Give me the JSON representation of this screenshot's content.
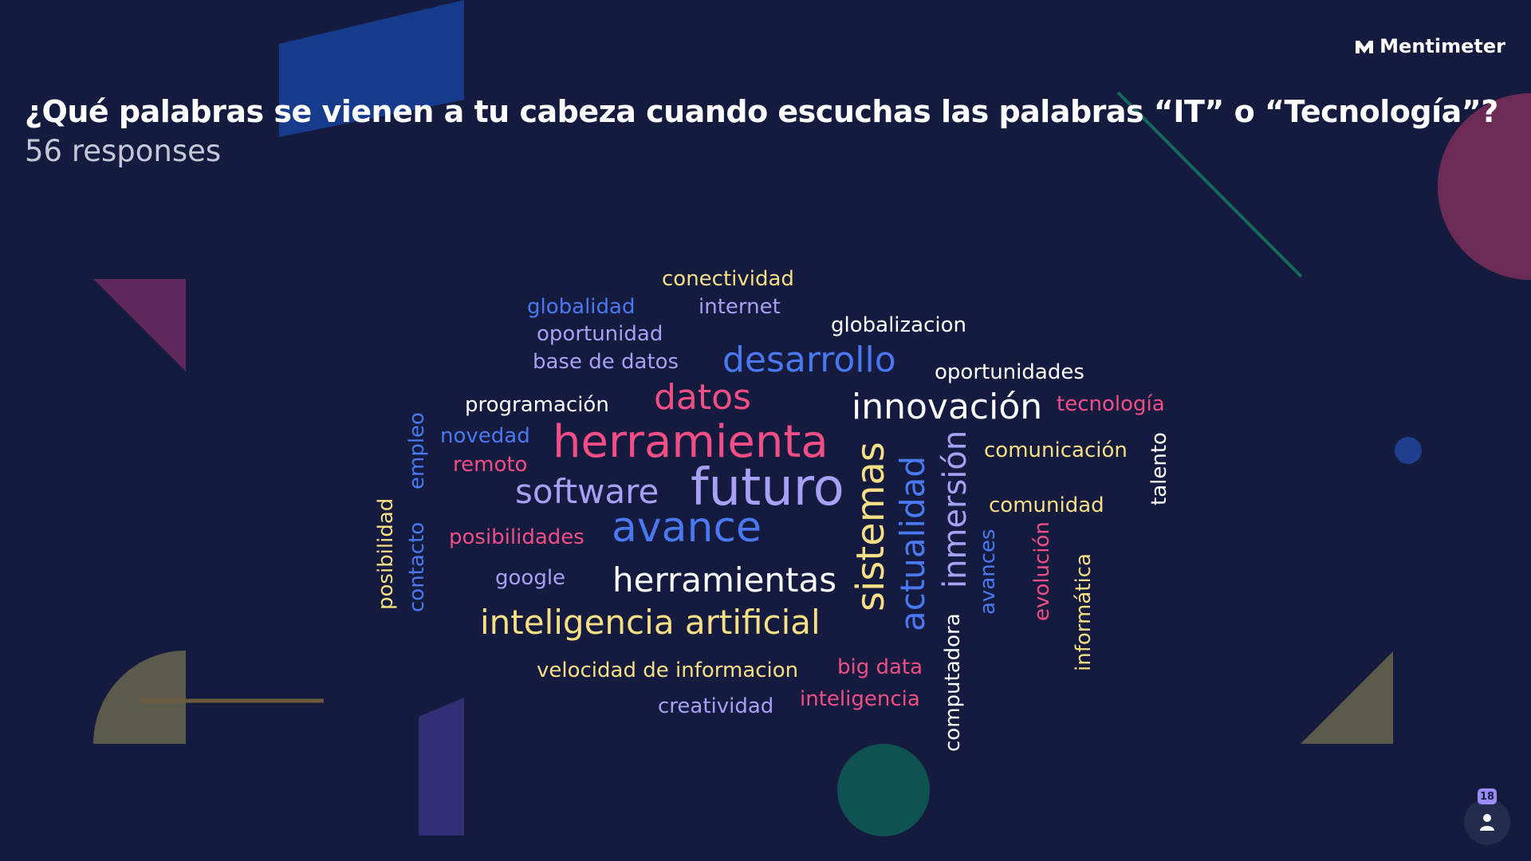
{
  "brand": {
    "name": "Mentimeter",
    "icon": "mentimeter-logo-icon"
  },
  "question": "¿Qué palabras se vienen a tu cabeza cuando escuchas las palabras “IT” o “Tecnología”?",
  "responses_label": "56 responses",
  "participants": {
    "count": "18",
    "icon": "person-icon"
  },
  "palette": {
    "background": "#141b3f",
    "yellow": "#f6df84",
    "blue": "#4a78f0",
    "lavender": "#a7a0f5",
    "pink": "#f04e84",
    "white": "#ffffff"
  },
  "word_cloud": [
    {
      "text": "conectividad",
      "color": "yellow",
      "vertical": false
    },
    {
      "text": "globalidad",
      "color": "blue",
      "vertical": false
    },
    {
      "text": "internet",
      "color": "lavender",
      "vertical": false
    },
    {
      "text": "globalizacion",
      "color": "white",
      "vertical": false
    },
    {
      "text": "oportunidad",
      "color": "lavender",
      "vertical": false
    },
    {
      "text": "base de datos",
      "color": "lavender",
      "vertical": false
    },
    {
      "text": "desarrollo",
      "color": "blue",
      "vertical": false
    },
    {
      "text": "oportunidades",
      "color": "white",
      "vertical": false
    },
    {
      "text": "programación",
      "color": "white",
      "vertical": false
    },
    {
      "text": "datos",
      "color": "pink",
      "vertical": false
    },
    {
      "text": "innovación",
      "color": "white",
      "vertical": false
    },
    {
      "text": "tecnología",
      "color": "pink",
      "vertical": false
    },
    {
      "text": "novedad",
      "color": "blue",
      "vertical": false
    },
    {
      "text": "herramienta",
      "color": "pink",
      "vertical": false
    },
    {
      "text": "remoto",
      "color": "pink",
      "vertical": false
    },
    {
      "text": "comunicación",
      "color": "yellow",
      "vertical": false
    },
    {
      "text": "software",
      "color": "lavender",
      "vertical": false
    },
    {
      "text": "futuro",
      "color": "lavender",
      "vertical": false
    },
    {
      "text": "comunidad",
      "color": "yellow",
      "vertical": false
    },
    {
      "text": "posibilidades",
      "color": "pink",
      "vertical": false
    },
    {
      "text": "avance",
      "color": "blue",
      "vertical": false
    },
    {
      "text": "google",
      "color": "lavender",
      "vertical": false
    },
    {
      "text": "herramientas",
      "color": "white",
      "vertical": false
    },
    {
      "text": "inteligencia artificial",
      "color": "yellow",
      "vertical": false
    },
    {
      "text": "velocidad de informacion",
      "color": "yellow",
      "vertical": false
    },
    {
      "text": "big data",
      "color": "pink",
      "vertical": false
    },
    {
      "text": "creatividad",
      "color": "lavender",
      "vertical": false
    },
    {
      "text": "inteligencia",
      "color": "pink",
      "vertical": false
    },
    {
      "text": "empleo",
      "color": "blue",
      "vertical": true
    },
    {
      "text": "posibilidad",
      "color": "yellow",
      "vertical": true
    },
    {
      "text": "contacto",
      "color": "blue",
      "vertical": true
    },
    {
      "text": "sistemas",
      "color": "yellow",
      "vertical": true
    },
    {
      "text": "actualidad",
      "color": "blue",
      "vertical": true
    },
    {
      "text": "inmersión",
      "color": "lavender",
      "vertical": true
    },
    {
      "text": "talento",
      "color": "white",
      "vertical": true
    },
    {
      "text": "avances",
      "color": "blue",
      "vertical": true
    },
    {
      "text": "evolución",
      "color": "pink",
      "vertical": true
    },
    {
      "text": "informática",
      "color": "yellow",
      "vertical": true
    },
    {
      "text": "computadora",
      "color": "white",
      "vertical": true
    }
  ]
}
